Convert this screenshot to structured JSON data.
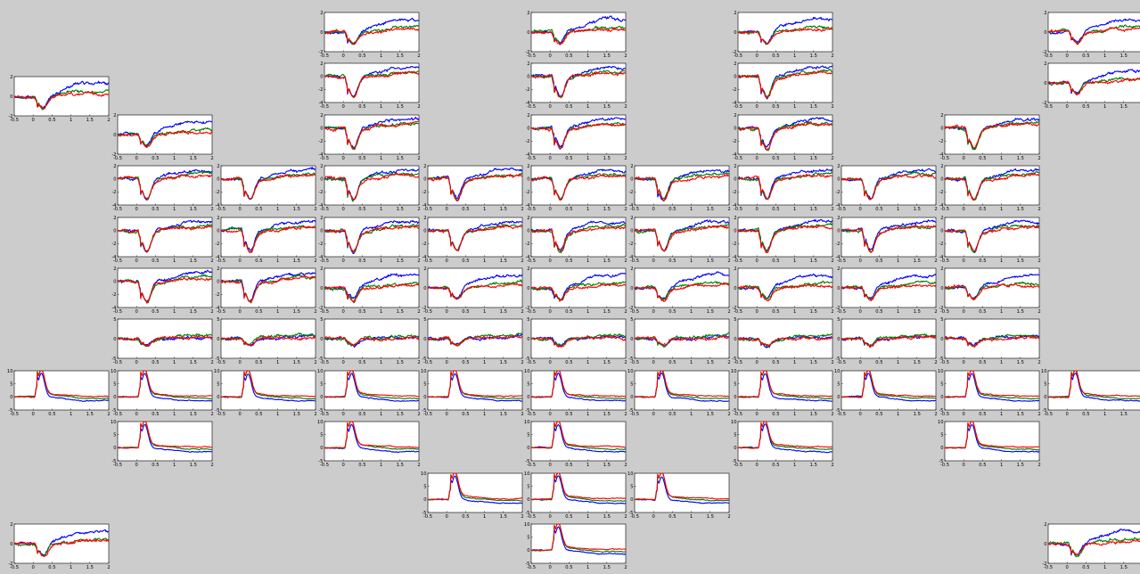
{
  "colors": {
    "blue": "#0000ff",
    "green": "#008000",
    "red": "#ff0000",
    "background": "#cccccc"
  },
  "chart_data": {
    "type": "line",
    "title": "",
    "xlabel": "",
    "ylabel": "",
    "xlim": [
      -0.5,
      2
    ],
    "x_ticks": [
      "-0.5",
      "0",
      "0.5",
      "1",
      "1.5",
      "2"
    ],
    "series": [
      {
        "color": "blue"
      },
      {
        "color": "green"
      },
      {
        "color": "red"
      }
    ],
    "panel_types": {
      "neg_small": {
        "ylim": [
          -2,
          2
        ],
        "y_ticks": [
          "-2",
          "0",
          "2"
        ],
        "dip": -1.0,
        "drift_blue": 1.3,
        "drift_green": 0.5,
        "drift_red": 0.3
      },
      "neg_mid": {
        "ylim": [
          -4,
          2
        ],
        "y_ticks": [
          "-4",
          "-2",
          "0",
          "2"
        ],
        "dip": -2.6,
        "drift_blue": 1.4,
        "drift_green": 0.8,
        "drift_red": 0.6
      },
      "mixed": {
        "ylim": [
          -5,
          5
        ],
        "y_ticks": [
          "-5",
          "0",
          "5"
        ],
        "dip": -1.5,
        "drift_blue": 0.5,
        "drift_green": 0.8,
        "drift_red": 0.3
      },
      "pos": {
        "ylim": [
          -5,
          10
        ],
        "y_ticks": [
          "-5",
          "0",
          "5",
          "10"
        ],
        "peak": 8.5,
        "drift_blue": -1.5,
        "drift_green": -0.6,
        "drift_red": 0.2
      }
    },
    "panels": [
      {
        "row": 0,
        "col": 3,
        "type": "neg_small"
      },
      {
        "row": 0,
        "col": 5,
        "type": "neg_small"
      },
      {
        "row": 0,
        "col": 7,
        "type": "neg_small"
      },
      {
        "row": 0,
        "col": 10,
        "type": "neg_small"
      },
      {
        "row": 1,
        "col": 3,
        "type": "neg_mid"
      },
      {
        "row": 1,
        "col": 5,
        "type": "neg_mid"
      },
      {
        "row": 1,
        "col": 7,
        "type": "neg_mid"
      },
      {
        "row": 1,
        "col": 10,
        "type": "neg_small"
      },
      {
        "row": 1.25,
        "col": 0,
        "type": "neg_small"
      },
      {
        "row": 2,
        "col": 1,
        "type": "neg_small"
      },
      {
        "row": 2,
        "col": 3,
        "type": "neg_mid"
      },
      {
        "row": 2,
        "col": 5,
        "type": "neg_mid"
      },
      {
        "row": 2,
        "col": 7,
        "type": "neg_mid"
      },
      {
        "row": 2,
        "col": 9,
        "type": "neg_mid"
      },
      {
        "row": 3,
        "col": 1,
        "type": "neg_mid"
      },
      {
        "row": 3,
        "col": 2,
        "type": "neg_mid"
      },
      {
        "row": 3,
        "col": 3,
        "type": "neg_mid"
      },
      {
        "row": 3,
        "col": 4,
        "type": "neg_mid"
      },
      {
        "row": 3,
        "col": 5,
        "type": "neg_mid"
      },
      {
        "row": 3,
        "col": 6,
        "type": "neg_mid"
      },
      {
        "row": 3,
        "col": 7,
        "type": "neg_mid"
      },
      {
        "row": 3,
        "col": 8,
        "type": "neg_mid"
      },
      {
        "row": 3,
        "col": 9,
        "type": "neg_mid"
      },
      {
        "row": 4,
        "col": 1,
        "type": "neg_mid"
      },
      {
        "row": 4,
        "col": 2,
        "type": "neg_mid"
      },
      {
        "row": 4,
        "col": 3,
        "type": "neg_mid"
      },
      {
        "row": 4,
        "col": 4,
        "type": "neg_mid"
      },
      {
        "row": 4,
        "col": 5,
        "type": "neg_mid"
      },
      {
        "row": 4,
        "col": 6,
        "type": "neg_mid"
      },
      {
        "row": 4,
        "col": 7,
        "type": "neg_mid"
      },
      {
        "row": 4,
        "col": 8,
        "type": "neg_mid"
      },
      {
        "row": 4,
        "col": 9,
        "type": "neg_mid"
      },
      {
        "row": 5,
        "col": 1,
        "type": "neg_mid"
      },
      {
        "row": 5,
        "col": 2,
        "type": "neg_mid"
      },
      {
        "row": 5,
        "col": 3,
        "type": "neg_small"
      },
      {
        "row": 5,
        "col": 4,
        "type": "neg_small"
      },
      {
        "row": 5,
        "col": 5,
        "type": "neg_small"
      },
      {
        "row": 5,
        "col": 6,
        "type": "neg_small"
      },
      {
        "row": 5,
        "col": 7,
        "type": "neg_small"
      },
      {
        "row": 5,
        "col": 8,
        "type": "neg_small"
      },
      {
        "row": 5,
        "col": 9,
        "type": "neg_small"
      },
      {
        "row": 6,
        "col": 1,
        "type": "mixed"
      },
      {
        "row": 6,
        "col": 2,
        "type": "mixed"
      },
      {
        "row": 6,
        "col": 3,
        "type": "mixed"
      },
      {
        "row": 6,
        "col": 4,
        "type": "mixed"
      },
      {
        "row": 6,
        "col": 5,
        "type": "mixed"
      },
      {
        "row": 6,
        "col": 6,
        "type": "mixed"
      },
      {
        "row": 6,
        "col": 7,
        "type": "mixed"
      },
      {
        "row": 6,
        "col": 8,
        "type": "mixed"
      },
      {
        "row": 6,
        "col": 9,
        "type": "mixed"
      },
      {
        "row": 7,
        "col": 0,
        "type": "pos"
      },
      {
        "row": 7,
        "col": 1,
        "type": "pos"
      },
      {
        "row": 7,
        "col": 2,
        "type": "pos"
      },
      {
        "row": 7,
        "col": 3,
        "type": "pos"
      },
      {
        "row": 7,
        "col": 4,
        "type": "pos"
      },
      {
        "row": 7,
        "col": 5,
        "type": "pos"
      },
      {
        "row": 7,
        "col": 6,
        "type": "pos"
      },
      {
        "row": 7,
        "col": 7,
        "type": "pos"
      },
      {
        "row": 7,
        "col": 8,
        "type": "pos"
      },
      {
        "row": 7,
        "col": 9,
        "type": "pos"
      },
      {
        "row": 7,
        "col": 10,
        "type": "pos"
      },
      {
        "row": 8,
        "col": 1,
        "type": "pos"
      },
      {
        "row": 8,
        "col": 3,
        "type": "pos"
      },
      {
        "row": 8,
        "col": 5,
        "type": "pos"
      },
      {
        "row": 8,
        "col": 7,
        "type": "pos"
      },
      {
        "row": 8,
        "col": 9,
        "type": "pos"
      },
      {
        "row": 9,
        "col": 4,
        "type": "pos"
      },
      {
        "row": 9,
        "col": 5,
        "type": "pos"
      },
      {
        "row": 9,
        "col": 6,
        "type": "pos"
      },
      {
        "row": 10,
        "col": 0,
        "type": "neg_small"
      },
      {
        "row": 10,
        "col": 5,
        "type": "pos"
      },
      {
        "row": 10,
        "col": 10,
        "type": "neg_small"
      }
    ]
  }
}
